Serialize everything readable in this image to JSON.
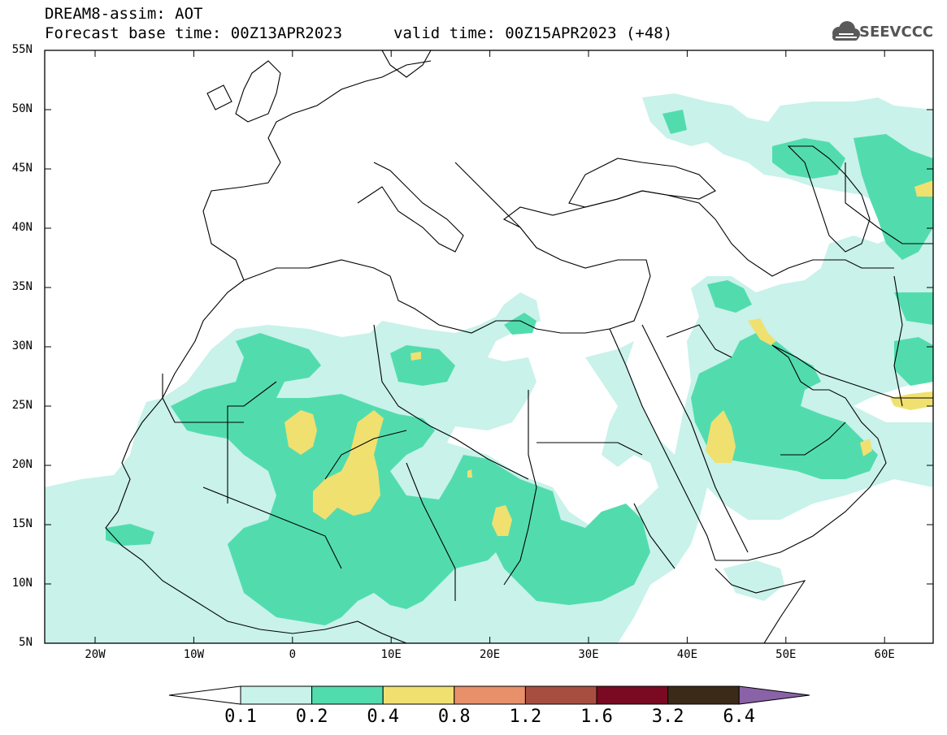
{
  "header": {
    "line1": "DREAM8-assim: AOT",
    "line2_left": "Forecast base time: 00Z13APR2023",
    "line2_right": "valid time: 00Z15APR2023 (+48)",
    "logo_text": "SEEVCCC"
  },
  "map": {
    "lat_labels": [
      "55N",
      "50N",
      "45N",
      "40N",
      "35N",
      "30N",
      "25N",
      "20N",
      "15N",
      "10N",
      "5N"
    ],
    "lon_labels": [
      "20W",
      "10W",
      "0",
      "10E",
      "20E",
      "30E",
      "40E",
      "50E",
      "60E"
    ]
  },
  "legend": {
    "levels": [
      "0.1",
      "0.2",
      "0.4",
      "0.8",
      "1.2",
      "1.6",
      "3.2",
      "6.4"
    ],
    "colors": [
      "#c8f2ea",
      "#52dcae",
      "#f0e070",
      "#e8906a",
      "#a84e40",
      "#7a0a22",
      "#3b2a18",
      "#8a62a8"
    ],
    "under_color": "#ffffff",
    "over_color": "#8a62a8"
  }
}
